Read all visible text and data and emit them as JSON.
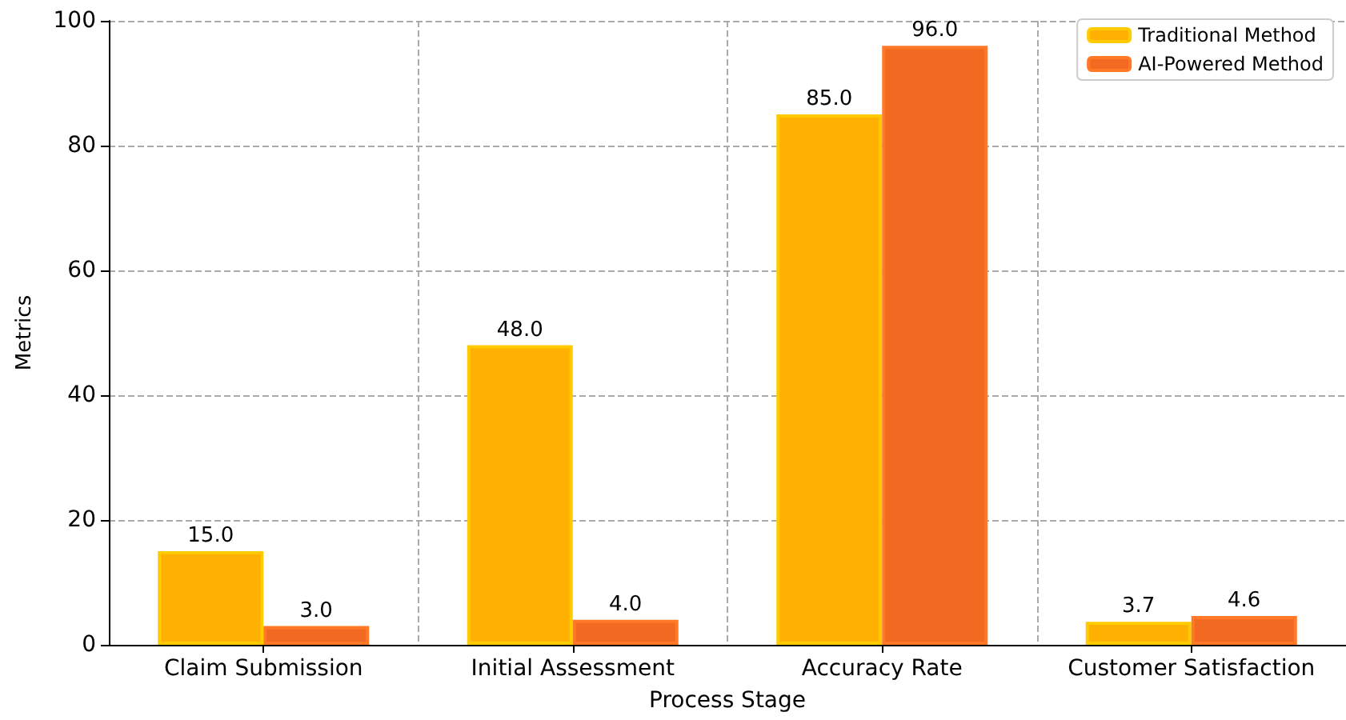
{
  "chart_data": {
    "type": "bar",
    "xlabel": "Process Stage",
    "ylabel": "Metrics",
    "categories": [
      "Claim Submission",
      "Initial Assessment",
      "Accuracy Rate",
      "Customer Satisfaction"
    ],
    "series": [
      {
        "name": "Traditional Method",
        "color": "#ffb000",
        "values": [
          15,
          48,
          85,
          3.7
        ],
        "value_labels": [
          "15.0",
          "48.0",
          "85.0",
          "3.7"
        ]
      },
      {
        "name": "AI-Powered Method",
        "color": "#f26a22",
        "values": [
          3,
          4,
          96,
          4.6
        ],
        "value_labels": [
          "3.0",
          "4.0",
          "96.0",
          "4.6"
        ]
      }
    ],
    "ylim": [
      0,
      100
    ],
    "yticks": [
      0,
      20,
      40,
      60,
      80,
      100
    ],
    "grid": true,
    "legend": "top right"
  }
}
